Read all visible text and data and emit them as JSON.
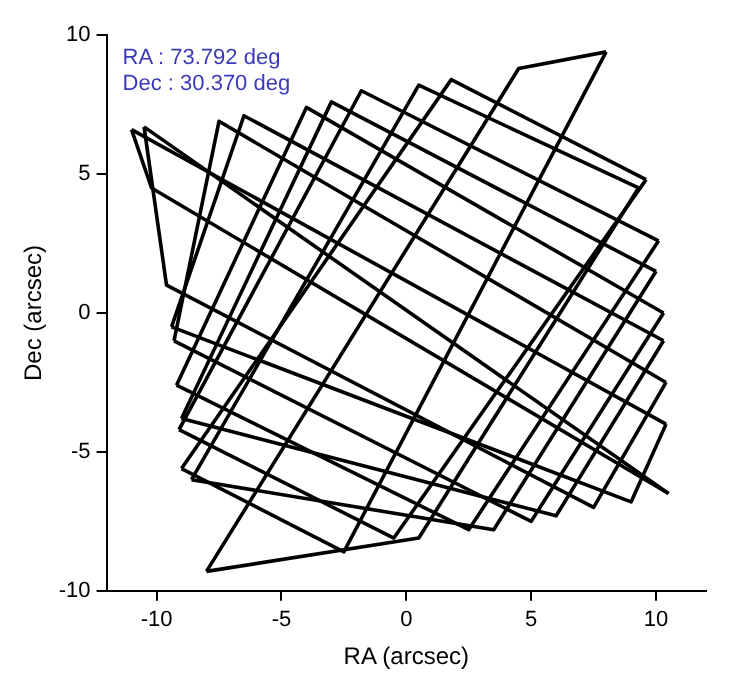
{
  "chart_data": {
    "type": "line",
    "xlabel": "RA (arcsec)",
    "ylabel": "Dec (arcsec)",
    "annotations": [
      "RA : 73.792 deg",
      "Dec : 30.370 deg"
    ],
    "xlim": [
      -12,
      12
    ],
    "ylim": [
      -10,
      10
    ],
    "xticks": [
      -10,
      -5,
      0,
      5,
      10
    ],
    "yticks": [
      -10,
      -5,
      0,
      5,
      10
    ],
    "grid": false,
    "legend": false,
    "marker": "none",
    "line_style": "solid",
    "series": [
      {
        "color": "#000000",
        "x": [
          -11,
          10.4
        ],
        "values": [
          6.6,
          -4.0
        ]
      },
      {
        "color": "#000000",
        "x": [
          -9.4,
          9.0,
          10.4
        ],
        "values": [
          -0.5,
          -6.8,
          -4.0
        ]
      },
      {
        "color": "#000000",
        "x": [
          -9.4,
          -6.5,
          10.3
        ],
        "values": [
          -0.5,
          7.1,
          -1.0
        ]
      },
      {
        "color": "#000000",
        "x": [
          -9.0,
          6.0,
          10.3
        ],
        "values": [
          -3.8,
          -7.3,
          -1.0
        ]
      },
      {
        "color": "#000000",
        "x": [
          -9.0,
          -3.0,
          10.0
        ],
        "values": [
          -3.8,
          7.6,
          1.5
        ]
      },
      {
        "color": "#000000",
        "x": [
          -8.6,
          3.5,
          10.0
        ],
        "values": [
          -6.0,
          -7.8,
          1.5
        ]
      },
      {
        "color": "#000000",
        "x": [
          -8.6,
          0.5,
          9.3
        ],
        "values": [
          -6.0,
          8.2,
          4.5
        ]
      },
      {
        "color": "#000000",
        "x": [
          -8.0,
          0.5,
          9.3
        ],
        "values": [
          -9.3,
          -8.1,
          4.5
        ]
      },
      {
        "color": "#000000",
        "x": [
          -8.0,
          4.5,
          8.0
        ],
        "values": [
          -9.3,
          8.8,
          9.4
        ]
      },
      {
        "color": "#000000",
        "x": [
          -9.0,
          -2.5,
          8.0
        ],
        "values": [
          -5.6,
          -8.6,
          9.4
        ]
      },
      {
        "color": "#000000",
        "x": [
          -9.0,
          1.8,
          9.6
        ],
        "values": [
          -5.6,
          8.4,
          4.8
        ]
      },
      {
        "color": "#000000",
        "x": [
          -9.1,
          -0.5,
          9.6
        ],
        "values": [
          -4.2,
          -8.1,
          4.8
        ]
      },
      {
        "color": "#000000",
        "x": [
          -9.1,
          -1.8,
          10.1
        ],
        "values": [
          -4.2,
          8.0,
          2.6
        ]
      },
      {
        "color": "#000000",
        "x": [
          -9.2,
          2.5,
          10.1
        ],
        "values": [
          -2.6,
          -7.8,
          2.6
        ]
      },
      {
        "color": "#000000",
        "x": [
          -9.2,
          -4.0,
          10.3
        ],
        "values": [
          -2.6,
          7.4,
          0.0
        ]
      },
      {
        "color": "#000000",
        "x": [
          -9.3,
          5.0,
          10.3
        ],
        "values": [
          -1.0,
          -7.5,
          0.0
        ]
      },
      {
        "color": "#000000",
        "x": [
          -9.3,
          -7.5,
          10.4
        ],
        "values": [
          -1.0,
          6.9,
          -2.5
        ]
      },
      {
        "color": "#000000",
        "x": [
          -10.5,
          -9.6,
          7.5,
          10.4
        ],
        "values": [
          6.7,
          1.0,
          -7.0,
          -2.5
        ]
      },
      {
        "color": "#000000",
        "x": [
          -10.5,
          10.5
        ],
        "values": [
          6.7,
          -6.5
        ]
      },
      {
        "color": "#000000",
        "x": [
          -11,
          -10.2,
          10.5
        ],
        "values": [
          6.6,
          4.5,
          -6.5
        ]
      }
    ]
  }
}
